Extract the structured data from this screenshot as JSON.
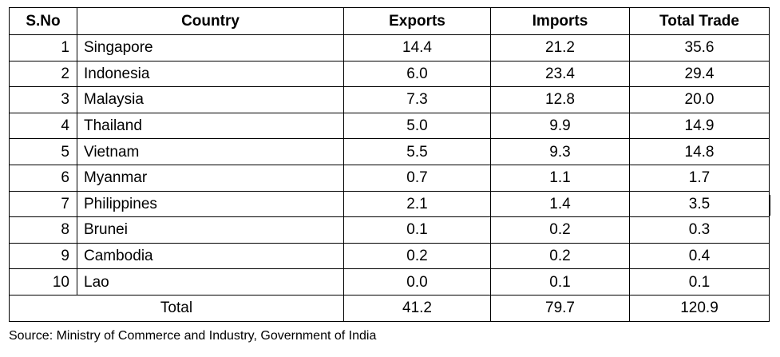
{
  "table": {
    "headers": [
      "S.No",
      "Country",
      "Exports",
      "Imports",
      "Total Trade"
    ],
    "rows": [
      {
        "sno": "1",
        "country": "Singapore",
        "exports": "14.4",
        "imports": "21.2",
        "total": "35.6"
      },
      {
        "sno": "2",
        "country": "Indonesia",
        "exports": "6.0",
        "imports": "23.4",
        "total": "29.4"
      },
      {
        "sno": "3",
        "country": "Malaysia",
        "exports": "7.3",
        "imports": "12.8",
        "total": "20.0"
      },
      {
        "sno": "4",
        "country": "Thailand",
        "exports": "5.0",
        "imports": "9.9",
        "total": "14.9"
      },
      {
        "sno": "5",
        "country": "Vietnam",
        "exports": "5.5",
        "imports": "9.3",
        "total": "14.8"
      },
      {
        "sno": "6",
        "country": "Myanmar",
        "exports": "0.7",
        "imports": "1.1",
        "total": "1.7"
      },
      {
        "sno": "7",
        "country": "Philippines",
        "exports": "2.1",
        "imports": "1.4",
        "total": "3.5"
      },
      {
        "sno": "8",
        "country": "Brunei",
        "exports": "0.1",
        "imports": "0.2",
        "total": "0.3"
      },
      {
        "sno": "9",
        "country": "Cambodia",
        "exports": "0.2",
        "imports": "0.2",
        "total": "0.4"
      },
      {
        "sno": "10",
        "country": "Lao",
        "exports": "0.0",
        "imports": "0.1",
        "total": "0.1"
      }
    ],
    "total_row": {
      "label": "Total",
      "exports": "41.2",
      "imports": "79.7",
      "total": "120.9"
    }
  },
  "source": "Source: Ministry of Commerce and Industry, Government of India"
}
